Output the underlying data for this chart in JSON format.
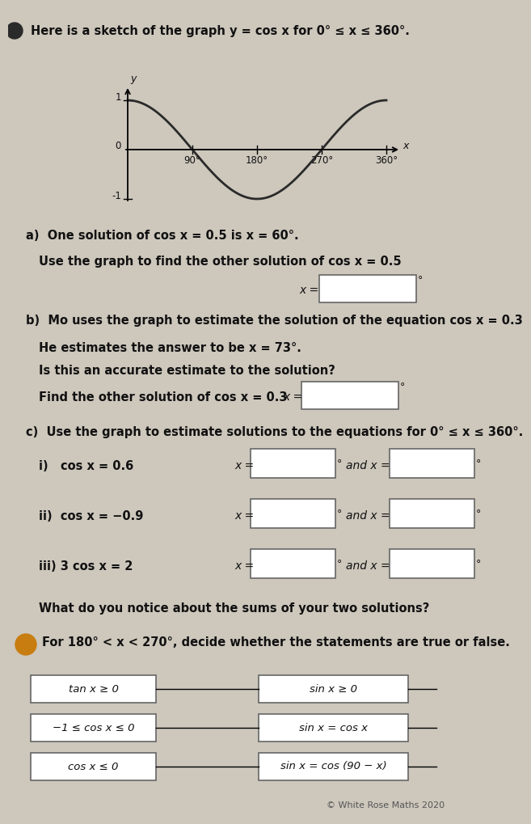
{
  "bg_color": "#cdc7bc",
  "title_text": "Here is a sketch of the graph y = cos x for 0° ≤ x ≤ 360°.",
  "part_a_line1": "a)  One solution of cos x = 0.5 is x = 60°.",
  "part_a_line2": "Use the graph to find the other solution of cos x = 0.5",
  "part_b_line1": "b)  Mo uses the graph to estimate the solution of the equation cos x = 0.3",
  "part_b_line2": "He estimates the answer to be x = 73°.",
  "part_b_line3": "Is this an accurate estimate to the solution?",
  "part_b_line4": "Find the other solution of cos x = 0.3",
  "part_c_intro": "c)  Use the graph to estimate solutions to the equations for 0° ≤ x ≤ 360°.",
  "part_c_i": "i)   cos x = 0.6",
  "part_c_ii": "ii)  cos x = −0.9",
  "part_c_iii": "iii) 3 cos x = 2",
  "part_c_notice": "What do you notice about the sums of your two solutions?",
  "part7_intro": "For 180° < x < 270°, decide whether the statements are true or false.",
  "left_boxes": [
    "tan x ≥ 0",
    "−1 ≤ cos x ≤ 0",
    "cos x ≤ 0"
  ],
  "right_boxes": [
    "sin x ≥ 0",
    "sin x = cos x",
    "sin x = cos (90 − x)"
  ],
  "footer": "© White Rose Maths 2020",
  "number7_color": "#c87d10",
  "curve_color": "#2a2a2a",
  "box_edge_color": "#666666",
  "text_color": "#111111"
}
